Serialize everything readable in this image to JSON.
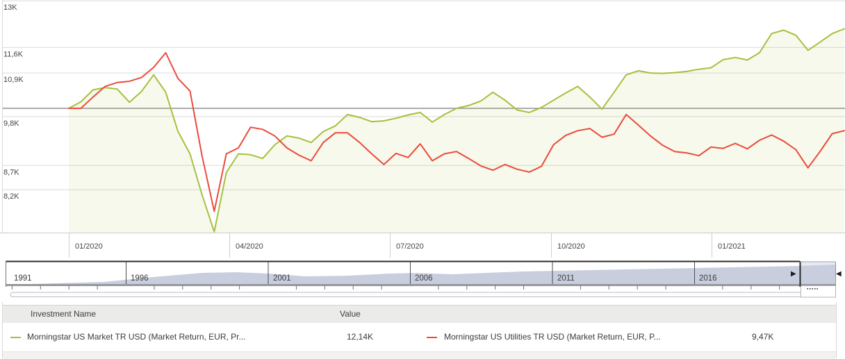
{
  "chart_data": {
    "type": "line",
    "subtype": "investment-growth",
    "y_axis": {
      "scale": "log",
      "ticks": [
        "13K",
        "11,6K",
        "10,9K",
        "9,8K",
        "8,7K",
        "8,2K"
      ],
      "tick_values": [
        13,
        11.6,
        10.9,
        9.8,
        8.7,
        8.2
      ],
      "baseline_value": 10,
      "ylim": [
        7.3,
        13.2
      ]
    },
    "x_axis": {
      "labels": [
        "01/2020",
        "04/2020",
        "07/2020",
        "10/2020",
        "01/2021"
      ]
    },
    "grid": true,
    "legend_position": "bottom-table",
    "series": [
      {
        "name": "Morningstar US Market TR USD (Market Return, EUR, Pr...",
        "color": "#a4c13c",
        "fill_color": "rgba(164,193,60,0.10)",
        "filled": true,
        "final_value_label": "12,14K",
        "values": [
          10.0,
          10.16,
          10.46,
          10.52,
          10.48,
          10.15,
          10.42,
          10.85,
          10.4,
          9.46,
          8.95,
          8.1,
          7.4,
          8.55,
          8.95,
          8.93,
          8.85,
          9.15,
          9.35,
          9.3,
          9.2,
          9.45,
          9.58,
          9.85,
          9.78,
          9.68,
          9.7,
          9.76,
          9.84,
          9.9,
          9.67,
          9.85,
          10.0,
          10.07,
          10.18,
          10.4,
          10.2,
          9.96,
          9.9,
          10.02,
          10.2,
          10.38,
          10.55,
          10.28,
          9.98,
          10.4,
          10.85,
          10.96,
          10.9,
          10.89,
          10.91,
          10.94,
          11.0,
          11.04,
          11.26,
          11.32,
          11.25,
          11.45,
          12.0,
          12.1,
          11.95,
          11.52,
          11.75,
          12.0,
          12.14
        ]
      },
      {
        "name": "Morningstar US Utilities TR USD (Market Return, EUR, P...",
        "color": "#eb4a3c",
        "fill_color": null,
        "filled": false,
        "final_value_label": "9,47K",
        "values": [
          10.0,
          10.0,
          10.28,
          10.55,
          10.65,
          10.68,
          10.78,
          11.05,
          11.45,
          10.76,
          10.43,
          8.9,
          7.78,
          8.95,
          9.08,
          9.55,
          9.5,
          9.35,
          9.08,
          8.92,
          8.8,
          9.2,
          9.42,
          9.42,
          9.2,
          8.95,
          8.72,
          8.96,
          8.87,
          9.17,
          8.8,
          8.95,
          9.0,
          8.85,
          8.69,
          8.6,
          8.72,
          8.62,
          8.56,
          8.68,
          9.15,
          9.36,
          9.47,
          9.52,
          9.32,
          9.39,
          9.85,
          9.6,
          9.35,
          9.14,
          9.0,
          8.97,
          8.91,
          9.1,
          9.07,
          9.18,
          9.06,
          9.25,
          9.37,
          9.23,
          9.04,
          8.65,
          9.0,
          9.4,
          9.47
        ]
      }
    ]
  },
  "timeline": {
    "years": [
      "1991",
      "1996",
      "2001",
      "2006",
      "2011",
      "2016"
    ],
    "area_color": "#c8cede",
    "selected_bg": "#ffffff",
    "unselected_bg": "#e7eaf2",
    "profile": [
      [
        12,
        410
      ],
      [
        80,
        408
      ],
      [
        150,
        406
      ],
      [
        220,
        399
      ],
      [
        290,
        393
      ],
      [
        340,
        392
      ],
      [
        388,
        394
      ],
      [
        440,
        398
      ],
      [
        500,
        397
      ],
      [
        560,
        394
      ],
      [
        600,
        393
      ],
      [
        650,
        395
      ],
      [
        700,
        393
      ],
      [
        750,
        391
      ],
      [
        800,
        390
      ],
      [
        850,
        389
      ],
      [
        900,
        388
      ],
      [
        950,
        387
      ],
      [
        1000,
        386
      ],
      [
        1050,
        385
      ],
      [
        1100,
        384
      ],
      [
        1150,
        383
      ],
      [
        1175,
        382
      ],
      [
        1203,
        381
      ]
    ],
    "icons": {
      "selection_end_arrow": "▶",
      "scroll_left_arrow": "◀",
      "grip_dots": "▪▪▪▪▪"
    }
  },
  "table": {
    "headers": {
      "name": "Investment Name",
      "value": "Value"
    },
    "rows": [
      {
        "name": "Morningstar US Market TR USD (Market Return, EUR, Pr...",
        "value": "12,14K",
        "swatch_color": "#a4c13c"
      },
      {
        "name": "Morningstar US Utilities TR USD (Market Return, EUR, P...",
        "value": "9,47K",
        "swatch_color": "#eb4a3c"
      }
    ]
  }
}
